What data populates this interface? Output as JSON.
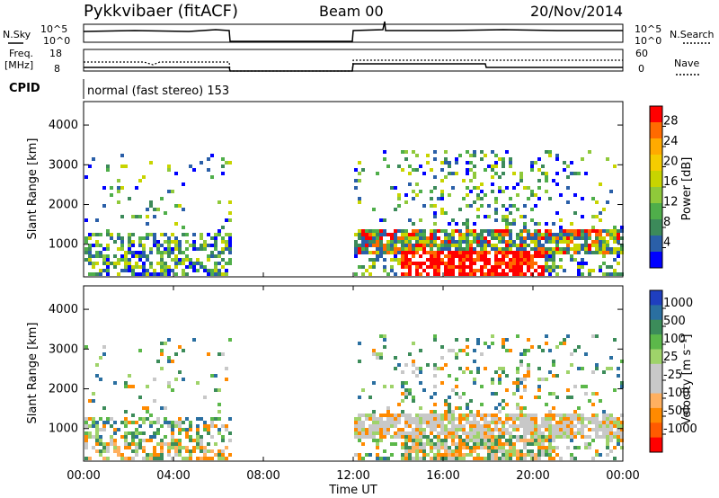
{
  "header": {
    "station": "Pykkvibaer (fitACF)",
    "beam": "Beam 00",
    "date": "20/Nov/2014"
  },
  "strips": {
    "nsky_label": "N.Sky",
    "nsky_ticks": [
      "10^5",
      "10^0"
    ],
    "nsearch_label": "N.Search",
    "nsearch_ticks": [
      "10^5",
      "10^0"
    ],
    "freq_label_1": "Freq.",
    "freq_label_2": "[MHz]",
    "freq_ticks": [
      "18",
      "8"
    ],
    "nave_label": "Nave",
    "nave_ticks": [
      "60",
      "0"
    ],
    "cpid_label": "CPID",
    "cpid_value": "normal (fast stereo) 153"
  },
  "x_axis": {
    "title": "Time UT",
    "ticks": [
      "00:00",
      "04:00",
      "08:00",
      "12:00",
      "16:00",
      "20:00",
      "00:00"
    ]
  },
  "chart_data": [
    {
      "type": "heatmap",
      "title": "",
      "xlabel": "Time UT",
      "ylabel": "Slant Range [km]",
      "xlim_hours": [
        0,
        24
      ],
      "ylim_km": [
        180,
        4590
      ],
      "y_ticks": [
        "1000",
        "2000",
        "3000",
        "4000"
      ],
      "colorbar_label": "Power [dB]",
      "colorbar_ticks": [
        "28",
        "24",
        "20",
        "16",
        "12",
        "8",
        "4"
      ],
      "colorbar_colors": [
        "#ff0000",
        "#ff6a00",
        "#ffaa00",
        "#f5cc00",
        "#c8d400",
        "#8fc93a",
        "#4fae4a",
        "#3c8a5a",
        "#2a5fa8",
        "#0000ff"
      ],
      "data_gap_hours": [
        6.5,
        12.0
      ],
      "regions": [
        {
          "t": [
            0,
            6.5
          ],
          "r": [
            300,
            1300
          ],
          "level": "8-16 dB"
        },
        {
          "t": [
            12,
            24
          ],
          "r": [
            800,
            1400
          ],
          "level": "8-16 dB"
        },
        {
          "t": [
            14,
            20
          ],
          "r": [
            400,
            900
          ],
          "level": "24-28 dB"
        }
      ]
    },
    {
      "type": "heatmap",
      "title": "",
      "xlabel": "Time UT",
      "ylabel": "Slant Range [km]",
      "xlim_hours": [
        0,
        24
      ],
      "ylim_km": [
        180,
        4590
      ],
      "y_ticks": [
        "1000",
        "2000",
        "3000",
        "4000"
      ],
      "colorbar_label": "Velocity [m s⁻¹]",
      "colorbar_ticks": [
        "1000",
        "500",
        "100",
        "25",
        "-25",
        "-100",
        "-500",
        "-1000"
      ],
      "colorbar_colors": [
        "#1f3fbf",
        "#2a6fa0",
        "#3c8c5a",
        "#5cb84a",
        "#9fd36a",
        "#c8c8c8",
        "#c8c8c8",
        "#ffb060",
        "#ff8a00",
        "#ff5a00",
        "#ff0000"
      ],
      "data_gap_hours": [
        6.5,
        12.0
      ],
      "regions": [
        {
          "t": [
            0,
            6.5
          ],
          "r": [
            300,
            1100
          ],
          "level": "-100 to 100 m/s"
        },
        {
          "t": [
            12,
            24
          ],
          "r": [
            700,
            1500
          ],
          "level": "-25 to 25 m/s"
        }
      ]
    }
  ]
}
